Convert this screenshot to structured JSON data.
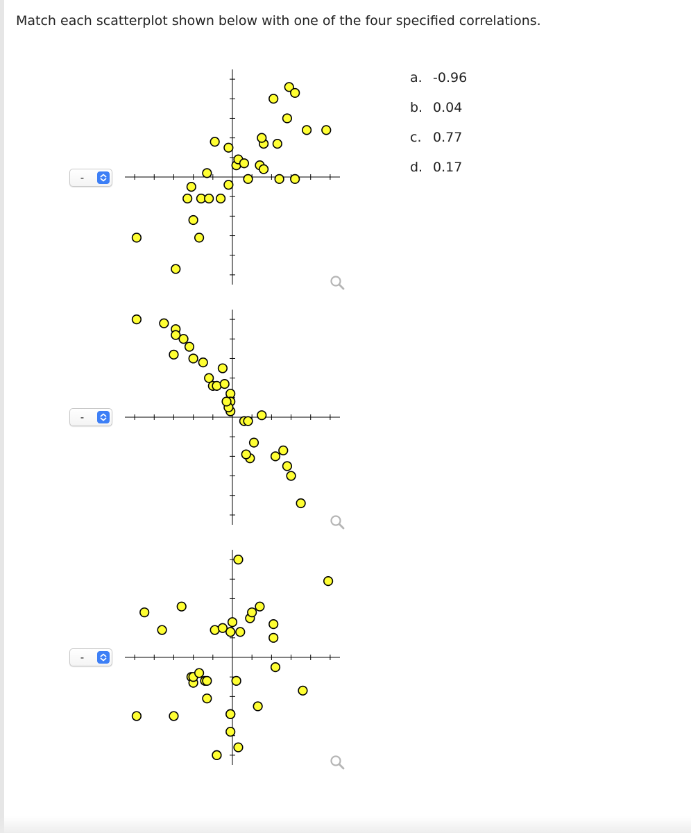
{
  "question": {
    "prompt": "Match each scatterplot shown below with one of the four specified correlations."
  },
  "correlation_options": [
    {
      "letter": "a.",
      "value": "-0.96"
    },
    {
      "letter": "b.",
      "value": "0.04"
    },
    {
      "letter": "c.",
      "value": "0.77"
    },
    {
      "letter": "d.",
      "value": "0.17"
    }
  ],
  "selects": [
    {
      "selected": "-",
      "control_icon": "up-down-chevron-icon"
    },
    {
      "selected": "-",
      "control_icon": "up-down-chevron-icon"
    },
    {
      "selected": "-",
      "control_icon": "up-down-chevron-icon"
    }
  ],
  "colors": {
    "point_fill": "#ffff33",
    "point_stroke": "#000000",
    "axis": "#000000",
    "select_accent": "#3d7ff6",
    "zoom_icon": "#b5b5b5"
  },
  "chart_data": [
    {
      "type": "scatter",
      "title": "",
      "xlabel": "",
      "ylabel": "",
      "xlim": [
        -5.5,
        5.5
      ],
      "ylim": [
        -5.5,
        5.5
      ],
      "grid": false,
      "x": [
        -4.9,
        -2.9,
        -2.0,
        -2.1,
        -2.3,
        -1.6,
        -1.2,
        -1.7,
        -0.6,
        -1.3,
        -0.2,
        -0.9,
        -0.2,
        0.2,
        0.3,
        0.6,
        0.8,
        1.6,
        1.4,
        1.6,
        2.4,
        2.9,
        2.1,
        3.2,
        4.8,
        2.3,
        1.5,
        2.8,
        3.8,
        3.2
      ],
      "y": [
        -3.1,
        -4.7,
        -2.2,
        -0.5,
        -1.1,
        -1.1,
        -1.1,
        -3.1,
        -1.1,
        0.2,
        -0.4,
        1.8,
        1.5,
        0.6,
        0.9,
        0.7,
        -0.1,
        1.7,
        0.6,
        0.4,
        -0.1,
        4.6,
        4.0,
        4.3,
        2.4,
        1.7,
        2.0,
        3.0,
        2.4,
        -0.1
      ]
    },
    {
      "type": "scatter",
      "title": "",
      "xlabel": "",
      "ylabel": "",
      "xlim": [
        -5.5,
        5.5
      ],
      "ylim": [
        -5.5,
        5.5
      ],
      "grid": false,
      "x": [
        -4.9,
        -3.5,
        -2.9,
        -2.9,
        -2.5,
        -3.0,
        -2.2,
        -2.0,
        -1.5,
        -0.5,
        -1.2,
        -1.0,
        -0.8,
        -0.4,
        -0.1,
        -0.1,
        -0.1,
        -0.2,
        -0.3,
        0.6,
        0.8,
        1.5,
        1.1,
        0.9,
        0.7,
        2.2,
        2.6,
        2.8,
        3.0,
        3.5
      ],
      "y": [
        5.0,
        4.8,
        4.5,
        4.2,
        4.0,
        3.2,
        3.6,
        3.0,
        2.8,
        2.5,
        2.0,
        1.6,
        1.6,
        1.7,
        1.2,
        0.8,
        0.3,
        0.5,
        0.8,
        -0.2,
        -0.2,
        0.1,
        -1.3,
        -2.1,
        -1.9,
        -2.0,
        -1.7,
        -2.5,
        -3.0,
        -4.4
      ]
    },
    {
      "type": "scatter",
      "title": "",
      "xlabel": "",
      "ylabel": "",
      "xlim": [
        -5.5,
        5.5
      ],
      "ylim": [
        -5.5,
        5.5
      ],
      "grid": false,
      "x": [
        -4.5,
        -3.6,
        -2.6,
        -2.1,
        -2.0,
        -2.0,
        -1.7,
        -1.4,
        -1.3,
        -0.9,
        -0.5,
        -0.1,
        0.0,
        0.4,
        0.9,
        1.0,
        1.4,
        2.1,
        2.1,
        2.2,
        4.9,
        0.3,
        0.2,
        -1.3,
        1.3,
        -0.1,
        -0.1,
        -0.1,
        0.3,
        3.6,
        -4.9,
        -3.0,
        -0.8,
        -0.8
      ],
      "y": [
        2.3,
        1.4,
        2.6,
        -1.0,
        -1.3,
        -1.0,
        -0.8,
        -1.2,
        -1.2,
        1.4,
        1.5,
        1.3,
        1.8,
        1.3,
        2.0,
        2.3,
        2.6,
        1.7,
        1.0,
        -0.5,
        3.9,
        5.0,
        -1.2,
        -2.1,
        -2.5,
        -2.9,
        -2.9,
        -3.8,
        -4.6,
        -1.7,
        -3.0,
        -3.0,
        -5.0,
        -5.0
      ]
    }
  ]
}
